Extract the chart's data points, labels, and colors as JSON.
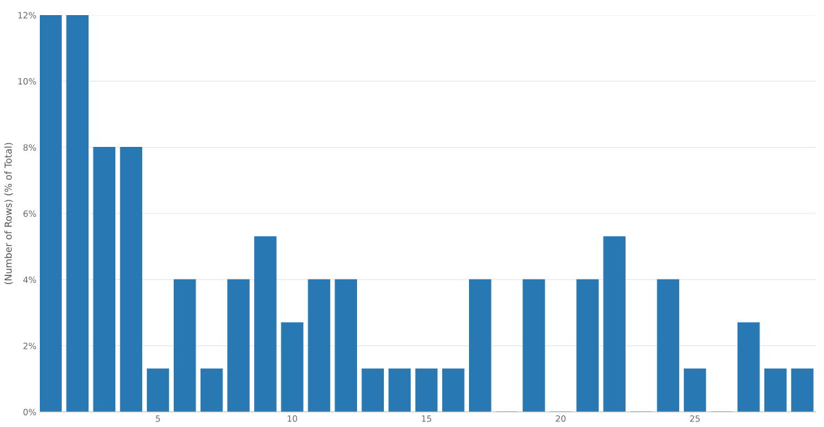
{
  "chart_data": {
    "type": "bar",
    "ylabel": "(Number of Rows) (% of Total)",
    "x": [
      1,
      2,
      3,
      4,
      5,
      6,
      7,
      8,
      9,
      10,
      11,
      12,
      13,
      14,
      15,
      16,
      17,
      18,
      19,
      20,
      21,
      22,
      23,
      24,
      25,
      26,
      27,
      28,
      29
    ],
    "values": [
      12,
      12,
      8,
      8,
      1.3,
      4,
      1.3,
      4,
      5.3,
      2.7,
      4,
      4,
      1.3,
      1.3,
      1.3,
      1.3,
      4,
      0,
      4,
      0,
      4,
      5.3,
      0,
      4,
      1.3,
      0,
      2.7,
      1.3,
      1.3
    ],
    "color": "#2878b4",
    "xlim": [
      0.6,
      29.5
    ],
    "xticks": [
      5,
      10,
      15,
      20,
      25
    ],
    "ylim": [
      0,
      12
    ],
    "yticks": [
      {
        "value": 0,
        "label": "0%"
      },
      {
        "value": 2,
        "label": "2%"
      },
      {
        "value": 4,
        "label": "4%"
      },
      {
        "value": 6,
        "label": "6%"
      },
      {
        "value": 8,
        "label": "8%"
      },
      {
        "value": 10,
        "label": "10%"
      },
      {
        "value": 12,
        "label": "12%"
      }
    ],
    "grid": "y"
  }
}
